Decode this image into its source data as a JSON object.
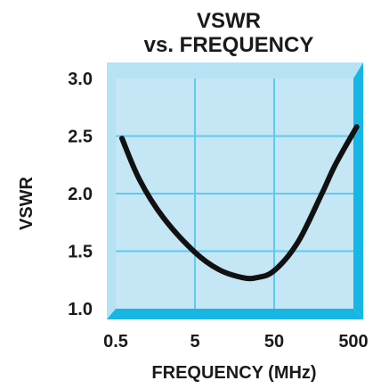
{
  "chart_data": {
    "type": "line",
    "title": [
      "VSWR",
      "vs. FREQUENCY"
    ],
    "xlabel": "FREQUENCY (MHz)",
    "ylabel": "VSWR",
    "x_scale": "log",
    "xlim": [
      0.5,
      500
    ],
    "ylim": [
      1.0,
      3.0
    ],
    "grid": true,
    "x_ticks": [
      0.5,
      5,
      50,
      500
    ],
    "x_tick_labels": [
      "0.5",
      "5",
      "50",
      "500"
    ],
    "y_ticks": [
      1.0,
      1.5,
      2.0,
      2.5,
      3.0
    ],
    "y_tick_labels": [
      "1.0",
      "1.5",
      "2.0",
      "2.5",
      "3.0"
    ],
    "series": [
      {
        "x": [
          0.6,
          1,
          2,
          5,
          10,
          20,
          30,
          50,
          100,
          200,
          300,
          550
        ],
        "y": [
          2.48,
          2.12,
          1.79,
          1.49,
          1.34,
          1.27,
          1.27,
          1.33,
          1.58,
          2.0,
          2.26,
          2.58
        ]
      }
    ]
  },
  "style": {
    "plot_fill": "#c5e6f5",
    "frame_light": "#b6e3f3",
    "frame_dark": "#18b6e4",
    "grid_color": "#5ccbee",
    "curve_color": "#111111"
  }
}
